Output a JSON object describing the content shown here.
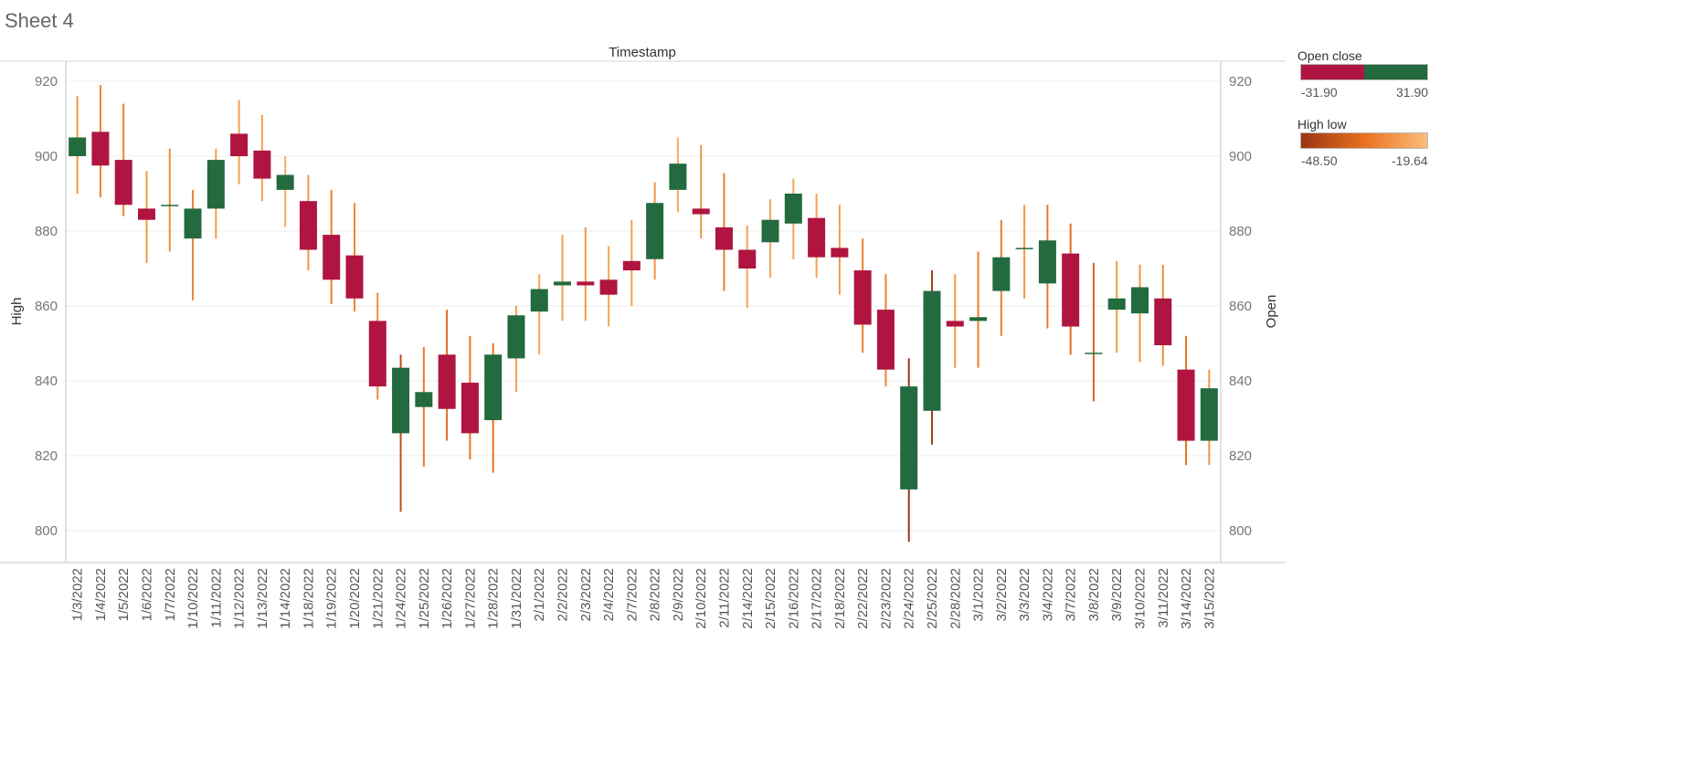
{
  "sheet_title": "Sheet 4",
  "colors": {
    "up": "#236a3f",
    "down": "#af1540",
    "wick_dark": "#9c3514",
    "wick_mid": "#e8711f",
    "wick_light": "#f9ae5b"
  },
  "legend": {
    "open_close": {
      "title": "Open close",
      "min_label": "-31.90",
      "max_label": "31.90"
    },
    "high_low": {
      "title": "High low",
      "min_label": "-48.50",
      "max_label": "-19.64"
    }
  },
  "chart_data": {
    "type": "candlestick",
    "title": "Timestamp",
    "ylabel": "High",
    "y2label": "Open",
    "ylim": [
      795,
      925
    ],
    "yticks": [
      800,
      820,
      840,
      860,
      880,
      900,
      920
    ],
    "categories": [
      "1/3/2022",
      "1/4/2022",
      "1/5/2022",
      "1/6/2022",
      "1/7/2022",
      "1/10/2022",
      "1/11/2022",
      "1/12/2022",
      "1/13/2022",
      "1/14/2022",
      "1/18/2022",
      "1/19/2022",
      "1/20/2022",
      "1/21/2022",
      "1/24/2022",
      "1/25/2022",
      "1/26/2022",
      "1/27/2022",
      "1/28/2022",
      "1/31/2022",
      "2/1/2022",
      "2/2/2022",
      "2/3/2022",
      "2/4/2022",
      "2/7/2022",
      "2/8/2022",
      "2/9/2022",
      "2/10/2022",
      "2/11/2022",
      "2/14/2022",
      "2/15/2022",
      "2/16/2022",
      "2/17/2022",
      "2/18/2022",
      "2/22/2022",
      "2/23/2022",
      "2/24/2022",
      "2/25/2022",
      "2/28/2022",
      "3/1/2022",
      "3/2/2022",
      "3/3/2022",
      "3/4/2022",
      "3/7/2022",
      "3/8/2022",
      "3/9/2022",
      "3/10/2022",
      "3/11/2022",
      "3/14/2022",
      "3/15/2022"
    ],
    "open": [
      900,
      906.5,
      899,
      886,
      887,
      878,
      886,
      906,
      901.5,
      891,
      888,
      879,
      873.5,
      856,
      826,
      833,
      847,
      839.5,
      829.5,
      846,
      858.5,
      865.5,
      866.5,
      867,
      872,
      872.5,
      891,
      886,
      881,
      875,
      877,
      882,
      883.5,
      875.5,
      869.5,
      859,
      811,
      832,
      856,
      856,
      864,
      875.5,
      866,
      874,
      847.5,
      859,
      858,
      862,
      843,
      824
    ],
    "close": [
      905,
      897.5,
      887,
      883,
      887,
      886,
      899,
      900,
      894,
      895,
      875,
      867,
      862,
      838.5,
      843.5,
      837,
      832.5,
      826,
      847,
      857.5,
      864.5,
      866.5,
      865.5,
      863,
      869.5,
      887.5,
      898,
      884.5,
      875,
      870,
      883,
      890,
      873,
      873,
      855,
      843,
      838.5,
      864,
      854.5,
      857,
      873,
      875.5,
      877.5,
      854.5,
      847.5,
      862,
      865,
      849.5,
      824,
      838
    ],
    "high": [
      916,
      919,
      914,
      896,
      902,
      891,
      902,
      915,
      911,
      900,
      895,
      891,
      887.5,
      863.5,
      847,
      849,
      859,
      852,
      850,
      860,
      868.5,
      879,
      881,
      876,
      883,
      893,
      905,
      903,
      895.5,
      881.5,
      888.5,
      894,
      890,
      887,
      878,
      868.5,
      846,
      869.5,
      868.5,
      874.5,
      883,
      887,
      887,
      882,
      871.5,
      872,
      871,
      871,
      852,
      843
    ],
    "low": [
      890,
      889,
      884,
      871.5,
      874.5,
      861.5,
      878,
      892.5,
      888,
      881,
      869.5,
      860.5,
      858.5,
      835,
      805,
      817,
      824,
      819,
      815.5,
      837,
      847,
      856,
      856,
      854.5,
      860,
      867,
      885,
      878,
      864,
      859.5,
      867.5,
      872.5,
      867.5,
      863,
      847.5,
      838.5,
      797,
      823,
      843.5,
      843.5,
      852,
      862,
      854,
      847,
      834.5,
      847.5,
      845,
      844,
      817.5,
      817.5
    ]
  }
}
